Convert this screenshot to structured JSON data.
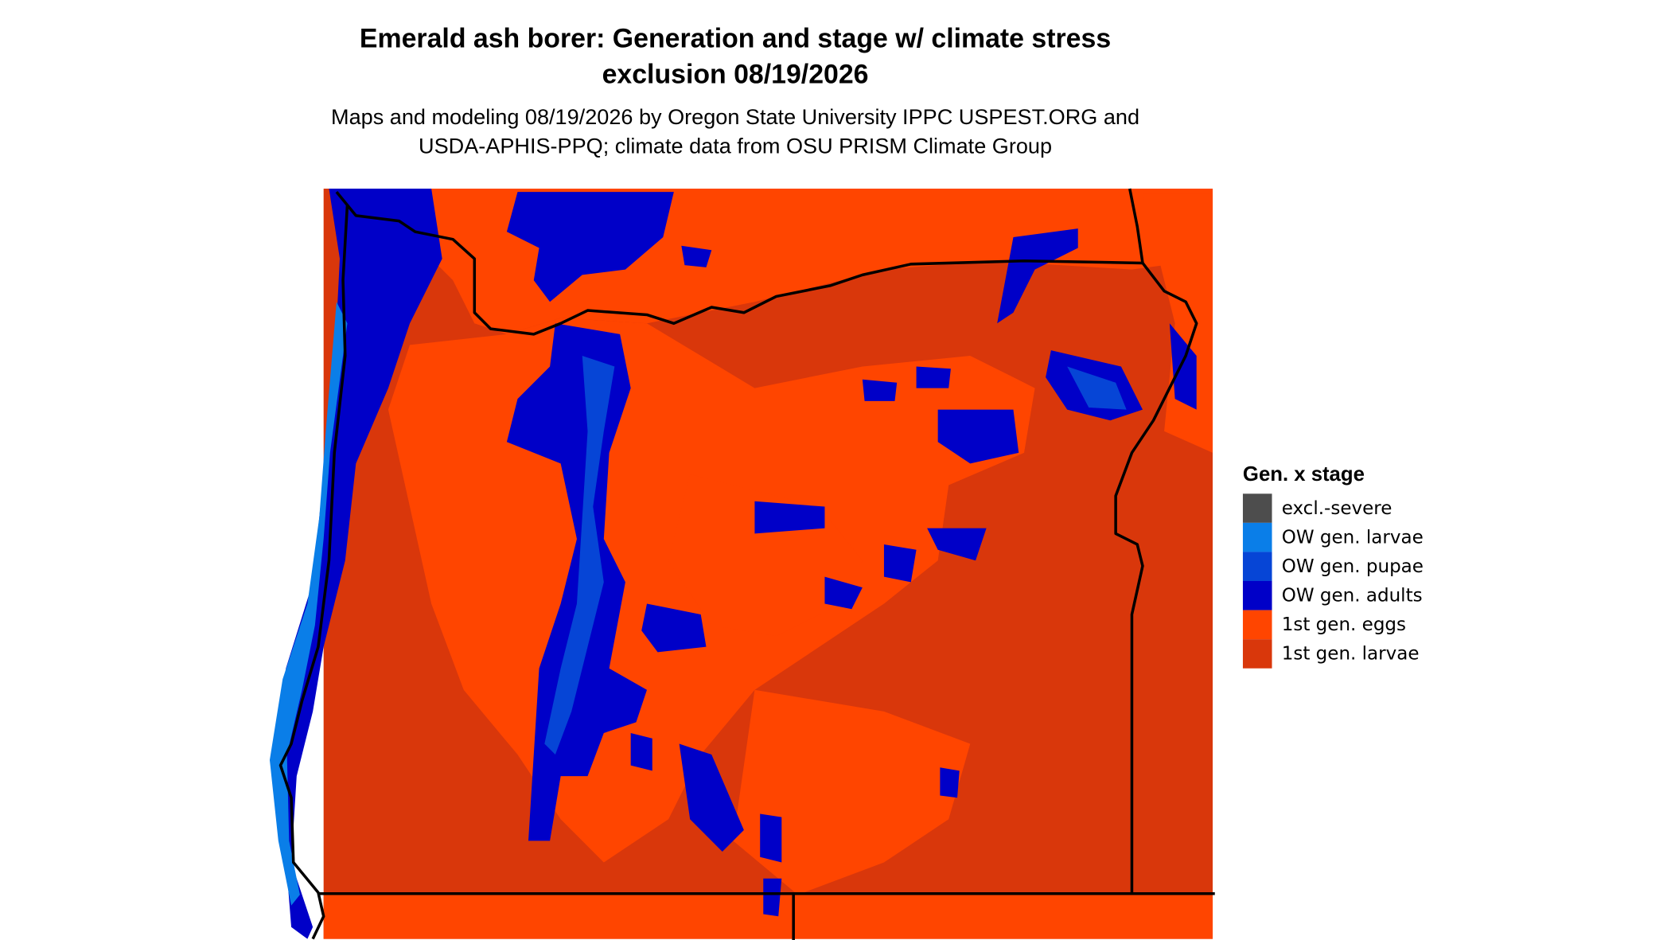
{
  "map": {
    "title": [
      "Emerald ash borer: Generation and stage w/ climate stress",
      "exclusion 08/19/2026"
    ],
    "subtitle": [
      "Maps and modeling 08/19/2026 by Oregon State University IPPC USPEST.ORG and",
      "USDA-APHIS-PPQ; climate data from OSU PRISM Climate Group"
    ],
    "legend": {
      "title": "Gen. x stage",
      "items": [
        {
          "label": "excl.-severe",
          "color": "#4d4d4d"
        },
        {
          "label": "OW gen. larvae",
          "color": "#0a7ee8"
        },
        {
          "label": "OW gen. pupae",
          "color": "#0645d6"
        },
        {
          "label": "OW gen. adults",
          "color": "#0000c8"
        },
        {
          "label": "1st gen. eggs",
          "color": "#ff4500"
        },
        {
          "label": "1st gen. larvae",
          "color": "#d9370b"
        }
      ]
    }
  }
}
